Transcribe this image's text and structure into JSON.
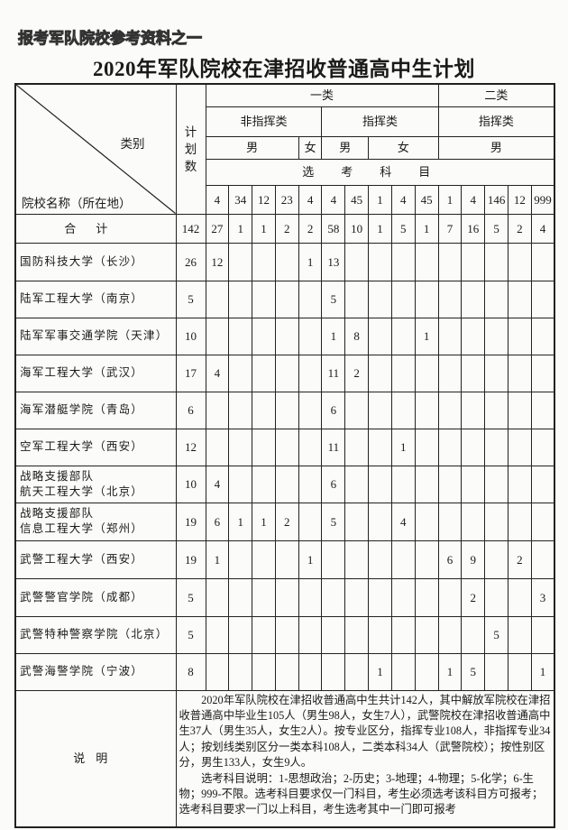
{
  "series_label": "报考军队院校参考资料之一",
  "title": "2020年军队院校在津招收普通高中生计划",
  "header": {
    "category": "类别",
    "school_name": "院校名称（所在地）",
    "plan_count": "计划数",
    "class_one": "一类",
    "class_two": "二类",
    "non_command": "非指挥类",
    "command_1": "指挥类",
    "command_2": "指挥类",
    "male_1": "男",
    "female_1": "女",
    "male_2": "男",
    "female_2": "女",
    "male_3": "男",
    "subjects": "选考科目",
    "subject_codes": [
      "4",
      "34",
      "12",
      "23",
      "4",
      "4",
      "45",
      "1",
      "4",
      "45",
      "1",
      "4",
      "146",
      "12",
      "999"
    ]
  },
  "total": {
    "label": "合计",
    "plan": "142",
    "values": [
      "27",
      "1",
      "1",
      "2",
      "2",
      "58",
      "10",
      "1",
      "5",
      "1",
      "7",
      "16",
      "5",
      "2",
      "4"
    ]
  },
  "rows": [
    {
      "name": [
        "国防科技大学（长沙）"
      ],
      "plan": "26",
      "values": [
        "12",
        "",
        "",
        "",
        "1",
        "13",
        "",
        "",
        "",
        "",
        "",
        "",
        "",
        "",
        ""
      ]
    },
    {
      "name": [
        "陆军工程大学（南京）"
      ],
      "plan": "5",
      "values": [
        "",
        "",
        "",
        "",
        "",
        "5",
        "",
        "",
        "",
        "",
        "",
        "",
        "",
        "",
        ""
      ]
    },
    {
      "name": [
        "陆军军事交通学院（天津）"
      ],
      "plan": "10",
      "values": [
        "",
        "",
        "",
        "",
        "",
        "1",
        "8",
        "",
        "",
        "1",
        "",
        "",
        "",
        "",
        ""
      ]
    },
    {
      "name": [
        "海军工程大学（武汉）"
      ],
      "plan": "17",
      "values": [
        "4",
        "",
        "",
        "",
        "",
        "11",
        "2",
        "",
        "",
        "",
        "",
        "",
        "",
        "",
        ""
      ]
    },
    {
      "name": [
        "海军潜艇学院（青岛）"
      ],
      "plan": "6",
      "values": [
        "",
        "",
        "",
        "",
        "",
        "6",
        "",
        "",
        "",
        "",
        "",
        "",
        "",
        "",
        ""
      ]
    },
    {
      "name": [
        "空军工程大学（西安）"
      ],
      "plan": "12",
      "values": [
        "",
        "",
        "",
        "",
        "",
        "11",
        "",
        "",
        "1",
        "",
        "",
        "",
        "",
        "",
        ""
      ]
    },
    {
      "name": [
        "战略支援部队",
        "航天工程大学（北京）"
      ],
      "plan": "10",
      "values": [
        "4",
        "",
        "",
        "",
        "",
        "6",
        "",
        "",
        "",
        "",
        "",
        "",
        "",
        "",
        ""
      ]
    },
    {
      "name": [
        "战略支援部队",
        "信息工程大学（郑州）"
      ],
      "plan": "19",
      "values": [
        "6",
        "1",
        "1",
        "2",
        "",
        "5",
        "",
        "",
        "4",
        "",
        "",
        "",
        "",
        "",
        ""
      ]
    },
    {
      "name": [
        "武警工程大学（西安）"
      ],
      "plan": "19",
      "values": [
        "1",
        "",
        "",
        "",
        "1",
        "",
        "",
        "",
        "",
        "",
        "6",
        "9",
        "",
        "2",
        ""
      ]
    },
    {
      "name": [
        "武警警官学院（成都）"
      ],
      "plan": "5",
      "values": [
        "",
        "",
        "",
        "",
        "",
        "",
        "",
        "",
        "",
        "",
        "",
        "2",
        "",
        "",
        "3"
      ]
    },
    {
      "name": [
        "武警特种警察学院（北京）"
      ],
      "plan": "5",
      "values": [
        "",
        "",
        "",
        "",
        "",
        "",
        "",
        "",
        "",
        "",
        "",
        "",
        "5",
        "",
        ""
      ]
    },
    {
      "name": [
        "武警海警学院（宁波）"
      ],
      "plan": "8",
      "values": [
        "",
        "",
        "",
        "",
        "",
        "",
        "",
        "1",
        "",
        "",
        "1",
        "5",
        "",
        "",
        "1"
      ]
    }
  ],
  "notes": {
    "label": "说明",
    "paragraphs": [
      "2020年军队院校在津招收普通高中生共计142人，其中解放军院校在津招收普通高中毕业生105人（男生98人，女生7人），武警院校在津招收普通高中生37人（男生35人，女生2人）。按专业区分，指挥专业108人，非指挥专业34人；按划线类别区分一类本科108人，二类本科34人（武警院校）；按性别区分，男生133人，女生9人。",
      "选考科目说明：1-思想政治；2-历史；3-地理；4-物理；5-化学；6-生物；999-不限。选考科目要求仅一门科目，考生必须选考该科目方可报考；选考科目要求一门以上科目，考生选考其中一门即可报考"
    ]
  }
}
